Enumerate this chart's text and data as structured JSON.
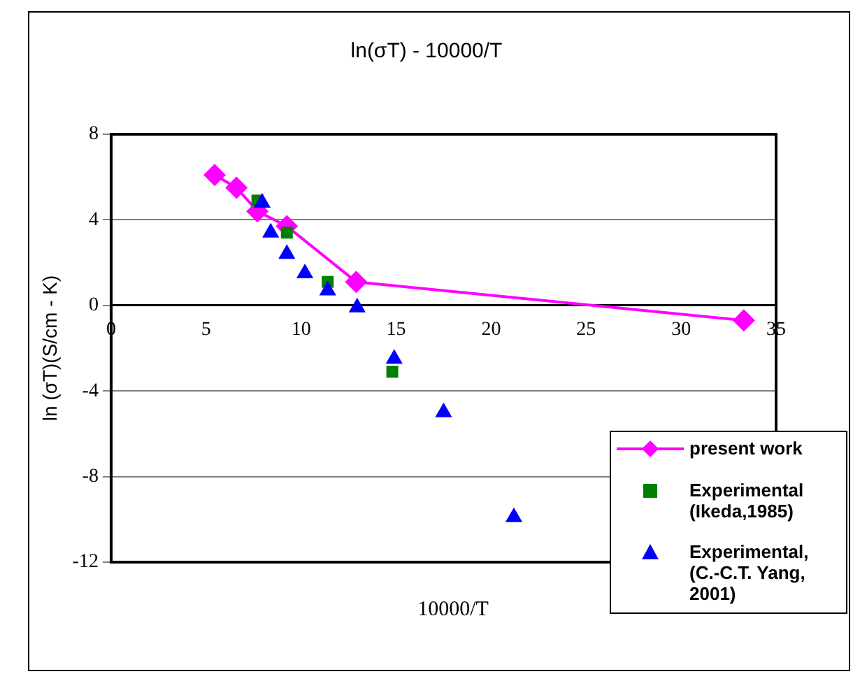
{
  "chart_data": {
    "type": "scatter",
    "title": "ln(σT) - 10000/T",
    "xlabel": "10000/T",
    "ylabel": "ln (σT)(S/cm - K)",
    "xlim": [
      0,
      35
    ],
    "xticks": [
      0,
      5,
      10,
      15,
      20,
      25,
      30,
      35
    ],
    "ylim": [
      -12,
      8
    ],
    "yticks": [
      -12,
      -8,
      -4,
      0,
      4,
      8
    ],
    "grid": "y",
    "legend": "bottom right",
    "series": [
      {
        "name": "present work",
        "type": "line",
        "marker": "diamond",
        "color": "#ff00ff",
        "x": [
          5.45,
          6.6,
          7.7,
          9.25,
          12.9,
          33.3
        ],
        "values": [
          6.1,
          5.5,
          4.4,
          3.7,
          1.1,
          -0.7
        ]
      },
      {
        "name": "Experimental (Ikeda,1985)",
        "type": "scatter",
        "marker": "square",
        "color": "#008000",
        "x": [
          7.7,
          9.25,
          11.4,
          14.8
        ],
        "values": [
          4.9,
          3.4,
          1.1,
          -3.1
        ]
      },
      {
        "name": "Experimental, (C.-C.T. Yang, 2001)",
        "type": "scatter",
        "marker": "triangle",
        "color": "#0000ff",
        "x": [
          7.95,
          8.4,
          9.25,
          10.2,
          11.4,
          12.95,
          14.9,
          17.5,
          21.2
        ],
        "values": [
          4.8,
          3.4,
          2.4,
          1.5,
          0.7,
          -0.1,
          -2.5,
          -5.0,
          -9.9
        ]
      }
    ]
  }
}
